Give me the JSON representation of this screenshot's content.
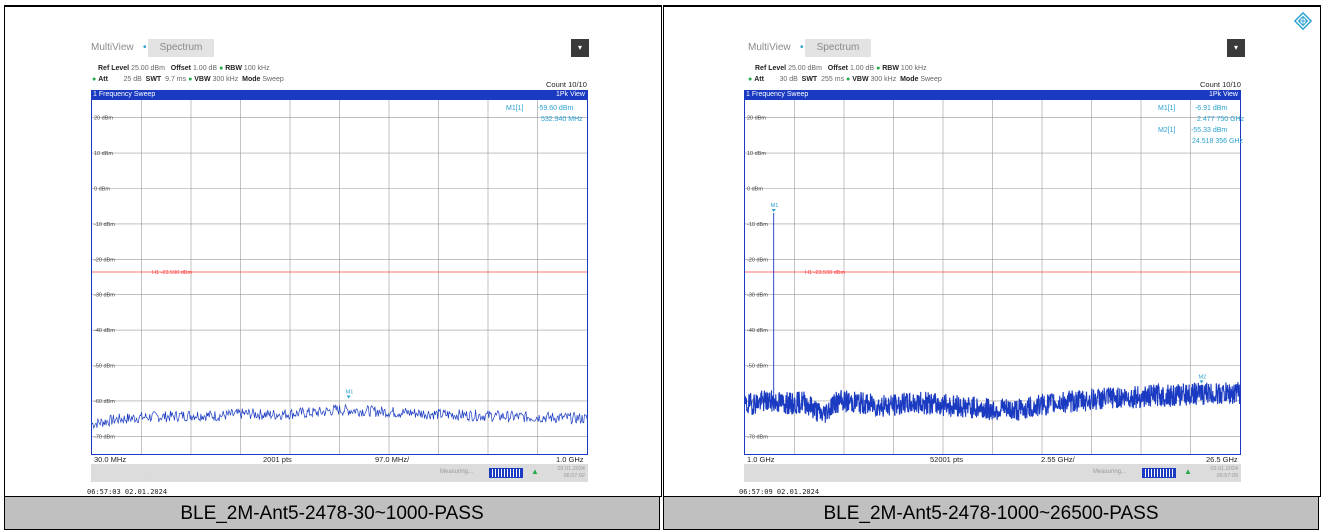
{
  "panels": [
    {
      "multiview_label": "MultiView",
      "tab_label": "Spectrum",
      "ref_level_label": "Ref Level",
      "ref_level_value": "25.00 dBm",
      "offset_label": "Offset",
      "offset_value": "1.00 dB",
      "rbw_label": "RBW",
      "rbw_value": "100 kHz",
      "att_label": "Att",
      "att_value": "25 dB",
      "swt_label": "SWT",
      "swt_value": "9.7 ms",
      "vbw_label": "VBW",
      "vbw_value": "300 kHz",
      "mode_label": "Mode",
      "mode_value": "Sweep",
      "count": "Count 10/10",
      "sweep_title": "1 Frequency Sweep",
      "view": "1Pk View",
      "footer_start": "30.0 MHz",
      "footer_pts": "2001 pts",
      "footer_span": "97.0 MHz/",
      "footer_stop": "1.0 GHz",
      "status_measuring": "Measuring...",
      "status_date": "02.01.2024",
      "status_time": "06:57:02",
      "timestamp": "06:57:03  02.01.2024",
      "caption": "BLE_2M-Ant5-2478-30~1000-PASS",
      "marker_readouts": [
        {
          "label": "M1[1]",
          "value": "-59.60 dBm",
          "freq": "532.940 MHz"
        }
      ]
    },
    {
      "multiview_label": "MultiView",
      "tab_label": "Spectrum",
      "ref_level_label": "Ref Level",
      "ref_level_value": "25.00 dBm",
      "offset_label": "Offset",
      "offset_value": "1.00 dB",
      "rbw_label": "RBW",
      "rbw_value": "100 kHz",
      "att_label": "Att",
      "att_value": "30 dB",
      "swt_label": "SWT",
      "swt_value": "255 ms",
      "vbw_label": "VBW",
      "vbw_value": "300 kHz",
      "mode_label": "Mode",
      "mode_value": "Sweep",
      "count": "Count 10/10",
      "sweep_title": "1 Frequency Sweep",
      "view": "1Pk View",
      "footer_start": "1.0 GHz",
      "footer_pts": "52001 pts",
      "footer_span": "2.55 GHz/",
      "footer_stop": "26.5 GHz",
      "status_measuring": "Measuring...",
      "status_date": "02.01.2024",
      "status_time": "06:57:09",
      "timestamp": "06:57:09  02.01.2024",
      "caption": "BLE_2M-Ant5-2478-1000~26500-PASS",
      "marker_readouts": [
        {
          "label": "M1[1]",
          "value": "-6.91 dBm",
          "freq": "2.477 750 GHz"
        },
        {
          "label": "M2[1]",
          "value": "-55.33 dBm",
          "freq": "24.518 356 GHz"
        }
      ]
    }
  ],
  "chart_data": [
    {
      "type": "line",
      "title": "1 Frequency Sweep",
      "xlabel": "",
      "ylabel": "",
      "xlim": [
        30.0,
        1000.0
      ],
      "x_unit": "MHz",
      "ylim": [
        -75,
        25
      ],
      "y_ticks": [
        20,
        10,
        0,
        -10,
        -20,
        -30,
        -40,
        -50,
        -60,
        -70
      ],
      "y_tick_labels": [
        "20 dBm",
        "10 dBm",
        "0 dBm",
        "-10 dBm",
        "-20 dBm",
        "-30 dBm",
        "-40 dBm",
        "-50 dBm",
        "-60 dBm",
        "-70 dBm"
      ],
      "grid": true,
      "limit_line": {
        "label": "H1 -23.590 dBm",
        "value": -23.59,
        "color": "#ff4040"
      },
      "markers": [
        {
          "name": "M1",
          "x": 532.94,
          "y": -59.6
        }
      ],
      "trace_color": "#1a3bc1",
      "series": [
        {
          "x": [
            30,
            80,
            130,
            180,
            230,
            280,
            330,
            380,
            430,
            480,
            510,
            532.94,
            560,
            610,
            660,
            710,
            760,
            810,
            860,
            910,
            960,
            1000
          ],
          "values": [
            -66.5,
            -65.2,
            -64.6,
            -64.4,
            -64.0,
            -64.2,
            -63.6,
            -63.9,
            -63.5,
            -63.2,
            -62.5,
            -59.6,
            -62.8,
            -63.1,
            -63.4,
            -63.8,
            -64.0,
            -64.2,
            -64.5,
            -64.6,
            -64.8,
            -65.0
          ]
        }
      ]
    },
    {
      "type": "line",
      "title": "1 Frequency Sweep",
      "xlabel": "",
      "ylabel": "",
      "xlim": [
        1.0,
        26.5
      ],
      "x_unit": "GHz",
      "ylim": [
        -75,
        25
      ],
      "y_ticks": [
        20,
        10,
        0,
        -10,
        -20,
        -30,
        -40,
        -50,
        -60,
        -70
      ],
      "y_tick_labels": [
        "20 dBm",
        "10 dBm",
        "0 dBm",
        "-10 dBm",
        "-20 dBm",
        "-30 dBm",
        "-40 dBm",
        "-50 dBm",
        "-60 dBm",
        "-70 dBm"
      ],
      "grid": true,
      "limit_line": {
        "label": "H1 -23.590 dBm",
        "value": -23.59,
        "color": "#ff4040"
      },
      "markers": [
        {
          "name": "M1",
          "x": 2.47775,
          "y": -6.91
        },
        {
          "name": "M2",
          "x": 24.518356,
          "y": -55.33
        }
      ],
      "trace_color": "#1a3bc1",
      "series": [
        {
          "x": [
            1.0,
            1.5,
            2.0,
            2.47775,
            3.0,
            3.5,
            4.0,
            4.5,
            5.0,
            5.5,
            6.0,
            7.0,
            8.0,
            9.0,
            10.0,
            11.0,
            12.0,
            13.0,
            14.0,
            15.0,
            16.0,
            17.0,
            18.0,
            19.0,
            20.0,
            21.0,
            22.0,
            23.0,
            24.0,
            24.518356,
            25.0,
            26.0,
            26.5
          ],
          "values": [
            -61.5,
            -60.5,
            -60.0,
            -6.91,
            -60.5,
            -61.0,
            -60.0,
            -62.0,
            -64.0,
            -61.0,
            -60.0,
            -60.5,
            -61.5,
            -61.0,
            -60.5,
            -61.0,
            -61.5,
            -62.0,
            -62.5,
            -62.5,
            -61.5,
            -60.5,
            -60.0,
            -59.5,
            -59.0,
            -59.0,
            -58.5,
            -58.5,
            -58.0,
            -55.33,
            -58.0,
            -57.8,
            -57.8
          ]
        }
      ]
    }
  ]
}
